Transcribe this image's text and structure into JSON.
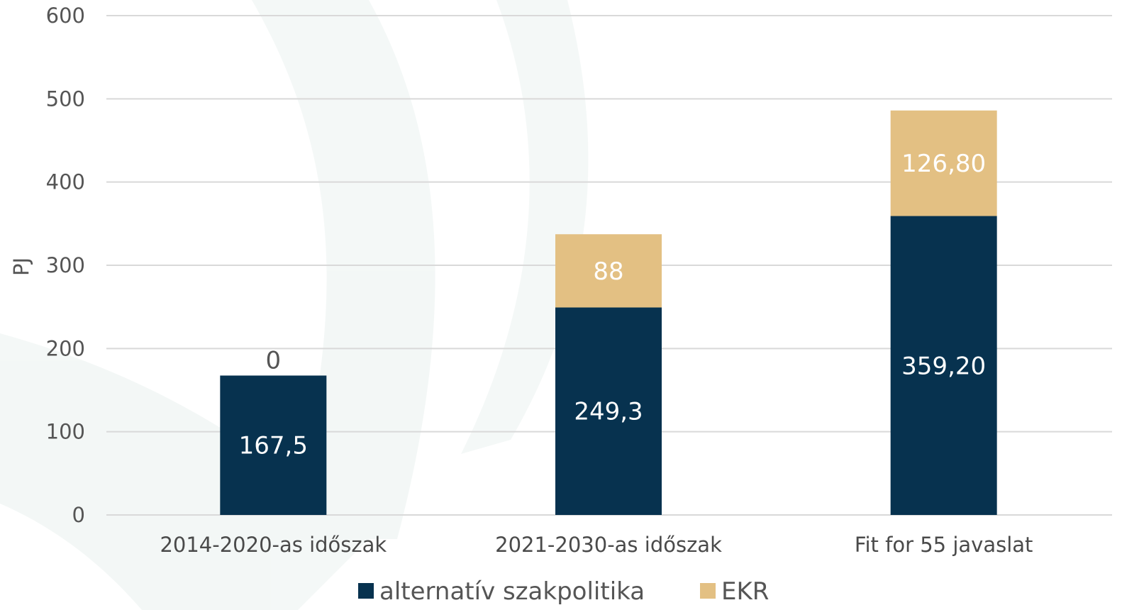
{
  "chart_data": {
    "type": "bar",
    "stacked": true,
    "ylabel": "PJ",
    "xlabel": "",
    "ylim": [
      0,
      600
    ],
    "y_ticks": [
      0,
      100,
      200,
      300,
      400,
      500,
      600
    ],
    "grid": true,
    "legend_placement": "bottom",
    "categories": [
      "2014-2020-as időszak",
      "2021-2030-as időszak",
      "Fit for 55 javaslat"
    ],
    "series": [
      {
        "name": "alternatív szakpolitika",
        "color": "#07324f",
        "label_color": "#ffffff",
        "values": [
          167.5,
          249.3,
          359.2
        ],
        "labels": [
          "167,5",
          "249,3",
          "359,20"
        ]
      },
      {
        "name": "EKR",
        "color": "#e3c083",
        "label_color": "#ffffff",
        "zero_label_color": "#555555",
        "values": [
          0,
          88,
          126.8
        ],
        "labels": [
          "0",
          "88",
          "126,80"
        ]
      }
    ]
  }
}
